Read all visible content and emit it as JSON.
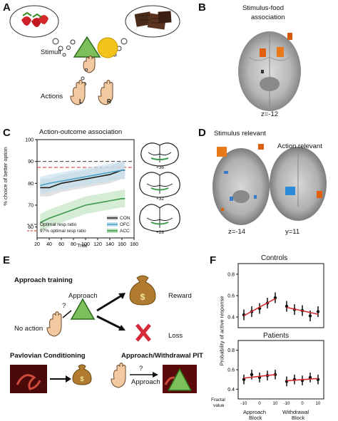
{
  "panel_letters": {
    "a": "A",
    "b": "B",
    "c": "C",
    "d": "D",
    "e": "E",
    "f": "F"
  },
  "panel_a": {
    "stimuli_label": "Stimuli",
    "actions_label": "Actions",
    "left_key": "L",
    "right_key": "R"
  },
  "panel_b": {
    "title_line1": "Stimulus-food",
    "title_line2": "association",
    "z_label": "z=-12"
  },
  "panel_c": {
    "title": "Action-outcome association",
    "ylabel": "% choice of better option",
    "xlabel": "Trial",
    "xticks": [
      "20",
      "40",
      "60",
      "80",
      "100",
      "120",
      "140",
      "160",
      "180"
    ],
    "yticks": [
      "60",
      "70",
      "80",
      "90",
      "100"
    ],
    "legend_left": [
      "Optimal resp ratio",
      "97% optimal resp ratio"
    ],
    "legend_right": [
      "CON",
      "OFC",
      "ACC"
    ],
    "slice_labels": [
      "+36",
      "+32",
      "+28"
    ]
  },
  "panel_d": {
    "stim_label": "Stimulus relevant",
    "action_label": "Action relevant",
    "z_label": "z=-14",
    "y_label": "y=11"
  },
  "panel_e": {
    "approach_training": "Approach training",
    "approach": "Approach",
    "no_action": "No action",
    "question": "?",
    "reward": "Reward",
    "loss": "Loss",
    "pavlovian": "Pavlovian Conditioning",
    "pit": "Approach/Withdrawal PIT",
    "approach2": "Approach",
    "question2": "?",
    "dollar": "$"
  },
  "panel_f": {
    "controls": "Controls",
    "patients": "Patients",
    "ylabel": "Probability of active response",
    "fractal_value_line1": "Fractal",
    "fractal_value_line2": "value",
    "approach_block_line1": "Approach",
    "approach_block_line2": "Block",
    "withdrawal_block_line1": "Withdrawal",
    "withdrawal_block_line2": "Block",
    "xticks": [
      "-10",
      "0",
      "10",
      "10"
    ],
    "yticks_controls": [
      "0.8",
      "0.6",
      "0.4"
    ],
    "yticks_patients": [
      "0.8",
      "0.6",
      "0.4"
    ]
  },
  "colors": {
    "triangle": "#7dbf5a",
    "circle": "#f2c318",
    "red": "#d62a2a",
    "con": "#1a1a1a",
    "ofc": "#4aa0c8",
    "acc": "#3c9a4c"
  },
  "chart_data": [
    {
      "type": "line",
      "title": "Action-outcome association",
      "xlabel": "Trial",
      "ylabel": "% choice of better option",
      "xlim": [
        20,
        180
      ],
      "ylim": [
        55,
        100
      ],
      "reference_lines": [
        {
          "name": "Optimal resp ratio",
          "y": 90
        },
        {
          "name": "97% optimal resp ratio",
          "y": 87.3
        }
      ],
      "series": [
        {
          "name": "CON",
          "x": [
            25,
            40,
            60,
            80,
            100,
            120,
            140,
            160,
            165
          ],
          "values": [
            78,
            78,
            80,
            81,
            82,
            83,
            84,
            86,
            86
          ]
        },
        {
          "name": "OFC",
          "x": [
            25,
            40,
            60,
            80,
            100,
            120,
            140,
            160,
            165
          ],
          "values": [
            79,
            80,
            81,
            82,
            83,
            84,
            85,
            86,
            86
          ]
        },
        {
          "name": "ACC",
          "x": [
            25,
            40,
            60,
            80,
            100,
            120,
            140,
            160,
            165
          ],
          "values": [
            62,
            64,
            66,
            68,
            70,
            71,
            72,
            73,
            73
          ]
        }
      ]
    },
    {
      "type": "scatter",
      "title": "Controls",
      "ylabel": "Probability of active response",
      "series": [
        {
          "name": "Approach Block",
          "x": [
            -10,
            -5,
            0,
            5,
            10
          ],
          "values": [
            0.42,
            0.45,
            0.48,
            0.53,
            0.58
          ]
        },
        {
          "name": "Withdrawal Block",
          "x": [
            -10,
            -5,
            0,
            5,
            10
          ],
          "values": [
            0.5,
            0.47,
            0.46,
            0.41,
            0.45
          ]
        }
      ]
    },
    {
      "type": "scatter",
      "title": "Patients",
      "ylabel": "Probability of active response",
      "series": [
        {
          "name": "Approach Block",
          "x": [
            -10,
            -5,
            0,
            5,
            10
          ],
          "values": [
            0.5,
            0.55,
            0.52,
            0.54,
            0.55
          ]
        },
        {
          "name": "Withdrawal Block",
          "x": [
            -10,
            -5,
            0,
            5,
            10
          ],
          "values": [
            0.48,
            0.5,
            0.49,
            0.52,
            0.5
          ]
        }
      ]
    }
  ]
}
